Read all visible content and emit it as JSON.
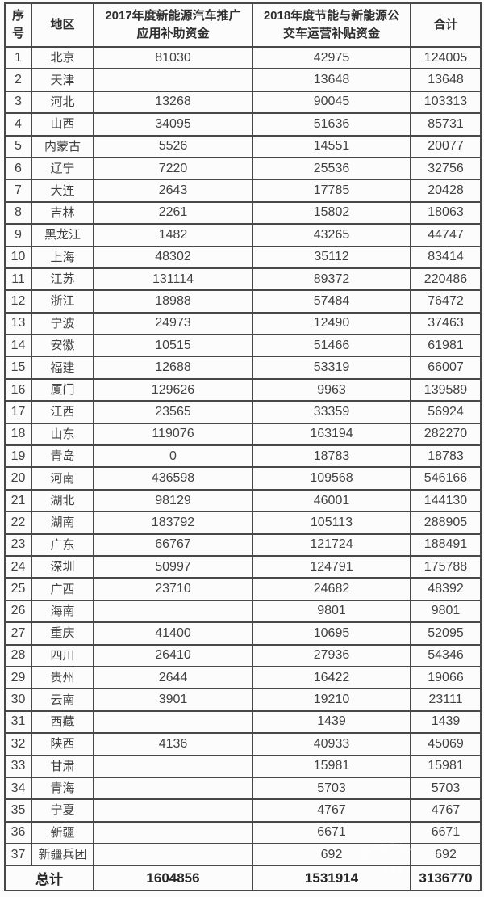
{
  "colors": {
    "border": "#484848",
    "cell_text": "#414141",
    "header_text": "#2f2f2f",
    "background": "#fcfcfc"
  },
  "table": {
    "headers": [
      "序号",
      "地区",
      "2017年度新能源汽车推广应用补助资金",
      "2018年度节能与新能源公交车运营补贴资金",
      "合计"
    ],
    "rows": [
      {
        "no": "1",
        "region": "北京",
        "y2017": "81030",
        "y2018": "42975",
        "total": "124005"
      },
      {
        "no": "2",
        "region": "天津",
        "y2017": "",
        "y2018": "13648",
        "total": "13648"
      },
      {
        "no": "3",
        "region": "河北",
        "y2017": "13268",
        "y2018": "90045",
        "total": "103313"
      },
      {
        "no": "4",
        "region": "山西",
        "y2017": "34095",
        "y2018": "51636",
        "total": "85731"
      },
      {
        "no": "5",
        "region": "内蒙古",
        "y2017": "5526",
        "y2018": "14551",
        "total": "20077"
      },
      {
        "no": "6",
        "region": "辽宁",
        "y2017": "7220",
        "y2018": "25536",
        "total": "32756"
      },
      {
        "no": "7",
        "region": "大连",
        "y2017": "2643",
        "y2018": "17785",
        "total": "20428"
      },
      {
        "no": "8",
        "region": "吉林",
        "y2017": "2261",
        "y2018": "15802",
        "total": "18063"
      },
      {
        "no": "9",
        "region": "黑龙江",
        "y2017": "1482",
        "y2018": "43265",
        "total": "44747"
      },
      {
        "no": "10",
        "region": "上海",
        "y2017": "48302",
        "y2018": "35112",
        "total": "83414"
      },
      {
        "no": "11",
        "region": "江苏",
        "y2017": "131114",
        "y2018": "89372",
        "total": "220486"
      },
      {
        "no": "12",
        "region": "浙江",
        "y2017": "18988",
        "y2018": "57484",
        "total": "76472"
      },
      {
        "no": "13",
        "region": "宁波",
        "y2017": "24973",
        "y2018": "12490",
        "total": "37463"
      },
      {
        "no": "14",
        "region": "安徽",
        "y2017": "10515",
        "y2018": "51466",
        "total": "61981"
      },
      {
        "no": "15",
        "region": "福建",
        "y2017": "12688",
        "y2018": "53319",
        "total": "66007"
      },
      {
        "no": "16",
        "region": "厦门",
        "y2017": "129626",
        "y2018": "9963",
        "total": "139589"
      },
      {
        "no": "17",
        "region": "江西",
        "y2017": "23565",
        "y2018": "33359",
        "total": "56924"
      },
      {
        "no": "18",
        "region": "山东",
        "y2017": "119076",
        "y2018": "163194",
        "total": "282270"
      },
      {
        "no": "19",
        "region": "青岛",
        "y2017": "0",
        "y2018": "18783",
        "total": "18783"
      },
      {
        "no": "20",
        "region": "河南",
        "y2017": "436598",
        "y2018": "109568",
        "total": "546166"
      },
      {
        "no": "21",
        "region": "湖北",
        "y2017": "98129",
        "y2018": "46001",
        "total": "144130"
      },
      {
        "no": "22",
        "region": "湖南",
        "y2017": "183792",
        "y2018": "105113",
        "total": "288905"
      },
      {
        "no": "23",
        "region": "广东",
        "y2017": "66767",
        "y2018": "121724",
        "total": "188491"
      },
      {
        "no": "24",
        "region": "深圳",
        "y2017": "50997",
        "y2018": "124791",
        "total": "175788"
      },
      {
        "no": "25",
        "region": "广西",
        "y2017": "23710",
        "y2018": "24682",
        "total": "48392"
      },
      {
        "no": "26",
        "region": "海南",
        "y2017": "",
        "y2018": "9801",
        "total": "9801"
      },
      {
        "no": "27",
        "region": "重庆",
        "y2017": "41400",
        "y2018": "10695",
        "total": "52095"
      },
      {
        "no": "28",
        "region": "四川",
        "y2017": "26410",
        "y2018": "27936",
        "total": "54346"
      },
      {
        "no": "29",
        "region": "贵州",
        "y2017": "2644",
        "y2018": "16422",
        "total": "19066"
      },
      {
        "no": "30",
        "region": "云南",
        "y2017": "3901",
        "y2018": "19210",
        "total": "23111"
      },
      {
        "no": "31",
        "region": "西藏",
        "y2017": "",
        "y2018": "1439",
        "total": "1439"
      },
      {
        "no": "32",
        "region": "陕西",
        "y2017": "4136",
        "y2018": "40933",
        "total": "45069"
      },
      {
        "no": "33",
        "region": "甘肃",
        "y2017": "",
        "y2018": "15981",
        "total": "15981"
      },
      {
        "no": "34",
        "region": "青海",
        "y2017": "",
        "y2018": "5703",
        "total": "5703"
      },
      {
        "no": "35",
        "region": "宁夏",
        "y2017": "",
        "y2018": "4767",
        "total": "4767"
      },
      {
        "no": "36",
        "region": "新疆",
        "y2017": "",
        "y2018": "6671",
        "total": "6671"
      },
      {
        "no": "37",
        "region": "新疆兵团",
        "y2017": "",
        "y2018": "692",
        "total": "692"
      }
    ],
    "footer": {
      "label": "总计",
      "y2017": "1604856",
      "y2018": "1531914",
      "total": "3136770"
    }
  }
}
